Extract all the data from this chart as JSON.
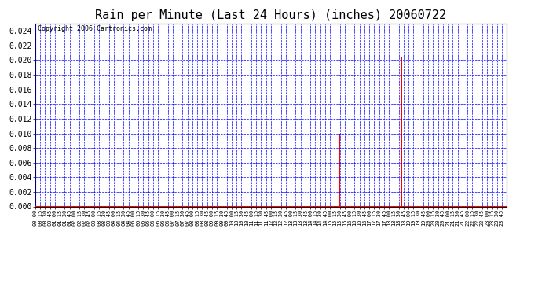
{
  "title": "Rain per Minute (Last 24 Hours) (inches) 20060722",
  "copyright_text": "Copyright 2006 Cartronics.com",
  "background_color": "#ffffff",
  "plot_bg_color": "#ffffff",
  "bar_color": "#ff0000",
  "grid_color": "#0000ff",
  "axis_color": "#ff0000",
  "text_color": "#000000",
  "border_color": "#000000",
  "ylim": [
    0.0,
    0.025
  ],
  "yticks": [
    0.0,
    0.002,
    0.004,
    0.006,
    0.008,
    0.01,
    0.012,
    0.014,
    0.016,
    0.018,
    0.02,
    0.022,
    0.024
  ],
  "spikes": [
    {
      "index": 930,
      "value": 0.01
    },
    {
      "index": 1120,
      "value": 0.0205
    },
    {
      "index": 1123,
      "value": 0.003
    },
    {
      "index": 1125,
      "value": 0.002
    }
  ],
  "total_minutes": 1440,
  "x_tick_interval_minutes": 15,
  "title_fontsize": 11,
  "copyright_fontsize": 6,
  "ylabel_fontsize": 7,
  "xlabel_fontsize": 5
}
